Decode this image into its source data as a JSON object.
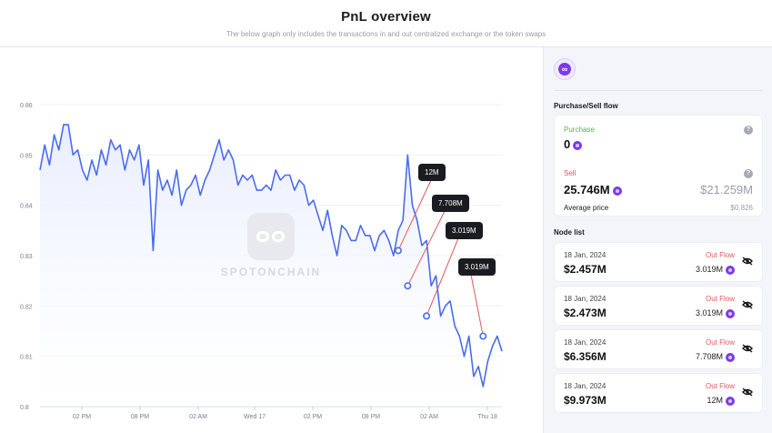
{
  "header": {
    "title": "PnL overview",
    "subtitle": "The below graph only includes the transactions in and out centralized exchange or the token swaps"
  },
  "watermark": "SPOTONCHAIN",
  "chart_data": {
    "type": "line",
    "ylim": [
      0.8,
      0.86
    ],
    "yticks": [
      "0.86",
      "0.85",
      "0.84",
      "0.83",
      "0.82",
      "0.81",
      "0.8"
    ],
    "xticks": [
      "02 PM",
      "08 PM",
      "02 AM",
      "Wed 17",
      "02 PM",
      "08 PM",
      "02 AM",
      "Thu 18"
    ],
    "xlim": [
      0,
      98
    ],
    "x": [
      0,
      1,
      2,
      3,
      4,
      5,
      6,
      7,
      8,
      9,
      10,
      11,
      12,
      13,
      14,
      15,
      16,
      17,
      18,
      19,
      20,
      21,
      22,
      23,
      24,
      25,
      26,
      27,
      28,
      29,
      30,
      31,
      32,
      33,
      34,
      35,
      36,
      37,
      38,
      39,
      40,
      41,
      42,
      43,
      44,
      45,
      46,
      47,
      48,
      49,
      50,
      51,
      52,
      53,
      54,
      55,
      56,
      57,
      58,
      59,
      60,
      61,
      62,
      63,
      64,
      65,
      66,
      67,
      68,
      69,
      70,
      71,
      72,
      73,
      74,
      75,
      76,
      77,
      78,
      79,
      80,
      81,
      82,
      83,
      84,
      85,
      86,
      87,
      88,
      89,
      90,
      91,
      92,
      93,
      94,
      95,
      96,
      97,
      98
    ],
    "values": [
      0.847,
      0.852,
      0.848,
      0.854,
      0.851,
      0.856,
      0.856,
      0.85,
      0.851,
      0.847,
      0.845,
      0.849,
      0.846,
      0.851,
      0.848,
      0.853,
      0.851,
      0.852,
      0.847,
      0.851,
      0.849,
      0.852,
      0.844,
      0.849,
      0.831,
      0.847,
      0.843,
      0.845,
      0.842,
      0.847,
      0.84,
      0.843,
      0.844,
      0.846,
      0.842,
      0.845,
      0.847,
      0.85,
      0.853,
      0.849,
      0.851,
      0.849,
      0.844,
      0.846,
      0.845,
      0.846,
      0.843,
      0.843,
      0.844,
      0.843,
      0.847,
      0.845,
      0.846,
      0.846,
      0.843,
      0.845,
      0.844,
      0.84,
      0.841,
      0.838,
      0.835,
      0.839,
      0.834,
      0.83,
      0.836,
      0.835,
      0.833,
      0.833,
      0.836,
      0.834,
      0.834,
      0.831,
      0.834,
      0.835,
      0.833,
      0.83,
      0.835,
      0.837,
      0.85,
      0.84,
      0.837,
      0.832,
      0.833,
      0.824,
      0.826,
      0.818,
      0.82,
      0.821,
      0.816,
      0.814,
      0.81,
      0.814,
      0.806,
      0.808,
      0.804,
      0.809,
      0.812,
      0.814,
      0.811
    ],
    "markers": [
      {
        "x": 76,
        "y": 0.831,
        "label": "12M"
      },
      {
        "x": 78,
        "y": 0.824,
        "label": "7.708M"
      },
      {
        "x": 82,
        "y": 0.818,
        "label": "3.019M"
      },
      {
        "x": 94,
        "y": 0.814,
        "label": "3.019M"
      }
    ],
    "colors": {
      "line": "#4a6cf0",
      "fill": "#e8edff",
      "marker": "#4a6cf0",
      "leader": "#e25a5a"
    }
  },
  "sidebar": {
    "purchase_sell_title": "Purchase/Sell flow",
    "purchase_label": "Purchase",
    "purchase_value": "0",
    "sell_label": "Sell",
    "sell_value": "25.746M",
    "sell_usd": "$21.259M",
    "avg_price_label": "Average price",
    "avg_price_value": "$0.826",
    "node_list_title": "Node list",
    "nodes": [
      {
        "date": "18 Jan, 2024",
        "flow": "Out Flow",
        "usd": "$2.457M",
        "amount": "3.019M"
      },
      {
        "date": "18 Jan, 2024",
        "flow": "Out Flow",
        "usd": "$2.473M",
        "amount": "3.019M"
      },
      {
        "date": "18 Jan, 2024",
        "flow": "Out Flow",
        "usd": "$6.356M",
        "amount": "7.708M"
      },
      {
        "date": "18 Jan, 2024",
        "flow": "Out Flow",
        "usd": "$9.973M",
        "amount": "12M"
      }
    ]
  },
  "icons": {
    "token": "token-icon",
    "help": "help-icon",
    "hide": "eye-off-icon"
  }
}
